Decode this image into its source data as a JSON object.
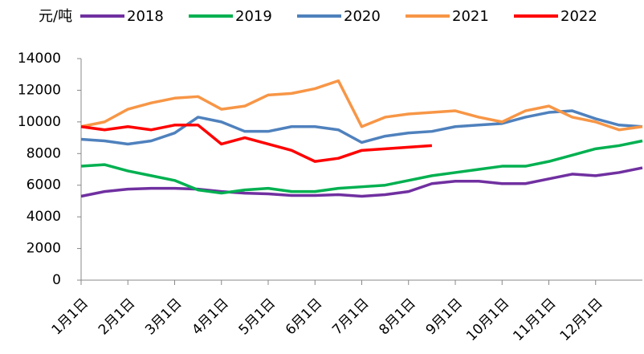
{
  "chart_data": {
    "type": "line",
    "y_label": "元/吨",
    "categories": [
      "1月1日",
      null,
      "2月1日",
      null,
      "3月1日",
      null,
      "4月1日",
      null,
      "5月1日",
      null,
      "6月1日",
      null,
      "7月1日",
      null,
      "8月1日",
      null,
      "9月1日",
      null,
      "10月1日",
      null,
      "11月1日",
      null,
      "12月1日",
      null,
      null
    ],
    "series": [
      {
        "name": "2018",
        "color": "#7030a0",
        "values": [
          5300,
          5600,
          5750,
          5800,
          5800,
          5750,
          5600,
          5500,
          5450,
          5350,
          5350,
          5400,
          5300,
          5400,
          5600,
          6100,
          6250,
          6250,
          6100,
          6100,
          6400,
          6700,
          6600,
          6800,
          7100
        ]
      },
      {
        "name": "2019",
        "color": "#00b050",
        "values": [
          7200,
          7300,
          6900,
          6600,
          6300,
          5700,
          5500,
          5700,
          5800,
          5600,
          5600,
          5800,
          5900,
          6000,
          6300,
          6600,
          6800,
          7000,
          7200,
          7200,
          7500,
          7900,
          8300,
          8500,
          8800
        ]
      },
      {
        "name": "2020",
        "color": "#4f81bd",
        "values": [
          8900,
          8800,
          8600,
          8800,
          9300,
          10300,
          10000,
          9400,
          9400,
          9700,
          9700,
          9500,
          8700,
          9100,
          9300,
          9400,
          9700,
          9800,
          9900,
          10300,
          10600,
          10700,
          10200,
          9800,
          9700
        ]
      },
      {
        "name": "2021",
        "color": "#f79646",
        "values": [
          9700,
          10000,
          10800,
          11200,
          11500,
          11600,
          10800,
          11000,
          11700,
          11800,
          12100,
          12600,
          9700,
          10300,
          10500,
          10600,
          10700,
          10300,
          10000,
          10700,
          11000,
          10300,
          10000,
          9500,
          9700
        ]
      },
      {
        "name": "2022",
        "color": "#ff0000",
        "values": [
          9700,
          9500,
          9700,
          9500,
          9800,
          9800,
          8600,
          9000,
          8600,
          8200,
          7500,
          7700,
          8200,
          8300,
          8400,
          8500,
          null,
          null,
          null,
          null,
          null,
          null,
          null,
          null,
          null
        ]
      }
    ],
    "ylim": [
      0,
      14000
    ],
    "yticks": [
      0,
      2000,
      4000,
      6000,
      8000,
      10000,
      12000,
      14000
    ]
  }
}
